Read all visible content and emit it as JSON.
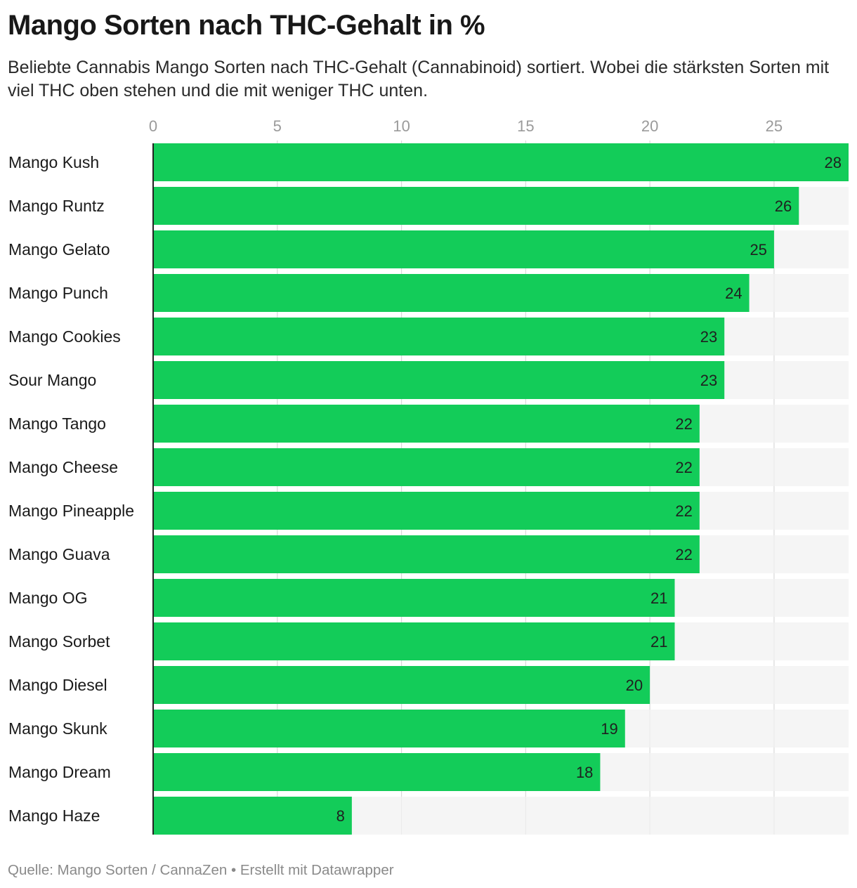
{
  "header": {
    "title": "Mango Sorten nach THC-Gehalt in %",
    "subtitle": "Beliebte Cannabis Mango Sorten nach THC-Gehalt (Cannabinoid) sortiert. Wobei die stärksten Sorten mit viel THC oben stehen und die mit weniger THC unten."
  },
  "footer": {
    "source": "Quelle: Mango Sorten / CannaZen • Erstellt mit Datawrapper"
  },
  "chart_data": {
    "type": "bar",
    "orientation": "horizontal",
    "title": "Mango Sorten nach THC-Gehalt in %",
    "xlim": [
      0,
      28
    ],
    "xticks": [
      0,
      5,
      10,
      15,
      20,
      25
    ],
    "categories": [
      "Mango Kush",
      "Mango Runtz",
      "Mango Gelato",
      "Mango Punch",
      "Mango Cookies",
      "Sour Mango",
      "Mango Tango",
      "Mango Cheese",
      "Mango Pineapple",
      "Mango Guava",
      "Mango OG",
      "Mango Sorbet",
      "Mango Diesel",
      "Mango Skunk",
      "Mango Dream",
      "Mango Haze"
    ],
    "values": [
      28,
      26,
      25,
      24,
      23,
      23,
      22,
      22,
      22,
      22,
      21,
      21,
      20,
      19,
      18,
      8
    ],
    "grid": true,
    "legend": "none",
    "colors": {
      "bar": "#13cc59",
      "track": "#f2f2f2",
      "grid": "#d8d8d8",
      "axis": "#222222"
    }
  }
}
